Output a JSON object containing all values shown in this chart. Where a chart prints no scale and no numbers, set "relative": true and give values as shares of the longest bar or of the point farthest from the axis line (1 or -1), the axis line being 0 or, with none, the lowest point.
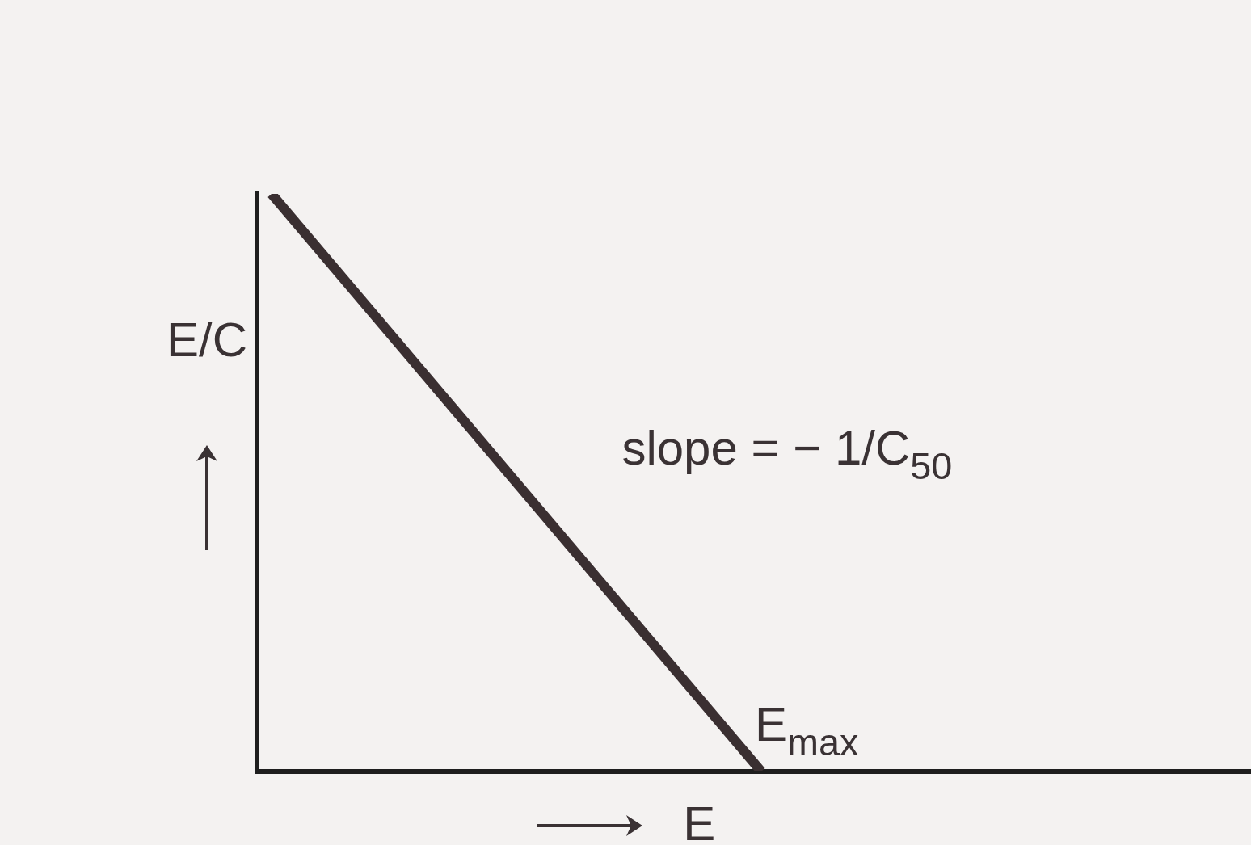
{
  "chart_data": {
    "type": "line",
    "relative": true,
    "categories": [
      null,
      null,
      null
    ],
    "values": [
      1,
      0,
      null
    ],
    "color": "#3a2f31",
    "xlabel": "E",
    "ylabel": "E/C",
    "annotations": [
      "slope = − 1/C$_{50}$",
      "E$_{max}$"
    ],
    "tick_labels": false
  }
}
